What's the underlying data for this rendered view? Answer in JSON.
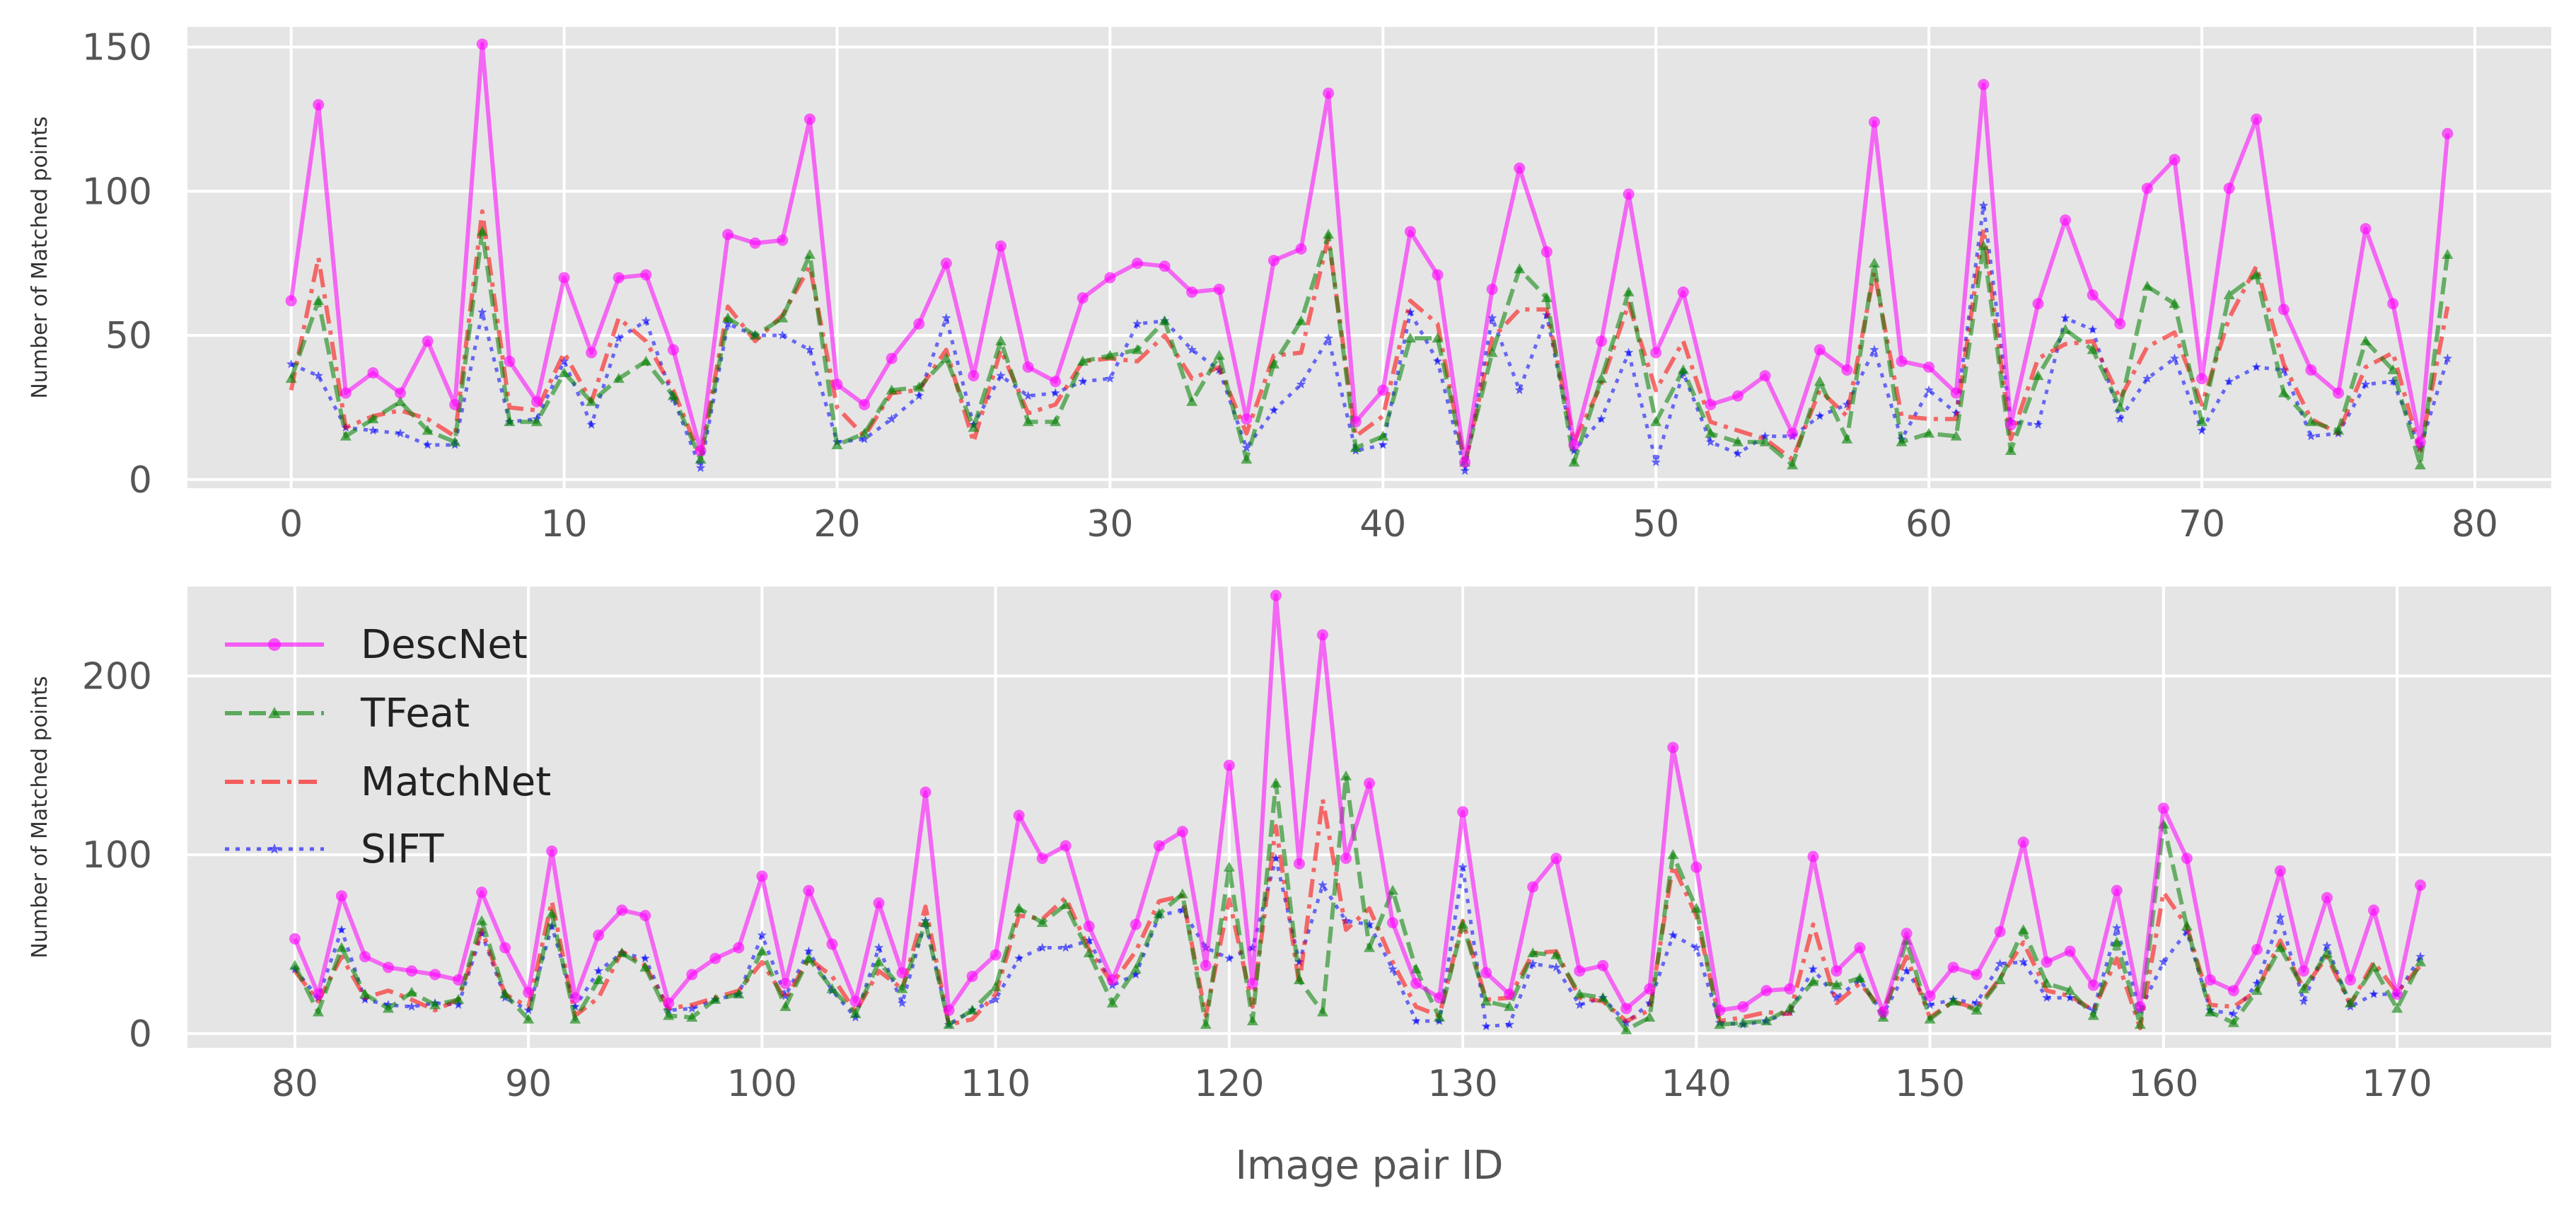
{
  "chart_data": [
    {
      "type": "line",
      "ylabel": "Number of Matched points",
      "xlabel": "",
      "xlim": [
        -3.8,
        82.8
      ],
      "ylim": [
        -3,
        157
      ],
      "xticks": [
        0,
        10,
        20,
        30,
        40,
        50,
        60,
        70,
        80
      ],
      "yticks": [
        0,
        50,
        100,
        150
      ],
      "grid": true,
      "x_start": 0,
      "series": [
        {
          "name": "DescNet",
          "values": [
            62,
            130,
            30,
            37,
            30,
            48,
            26,
            151,
            41,
            27,
            70,
            44,
            70,
            71,
            45,
            10,
            85,
            82,
            83,
            125,
            33,
            26,
            42,
            54,
            75,
            36,
            81,
            39,
            34,
            63,
            70,
            75,
            74,
            65,
            66,
            21,
            76,
            80,
            134,
            20,
            31,
            86,
            71,
            6,
            66,
            108,
            79,
            12,
            48,
            99,
            44,
            65,
            26,
            29,
            36,
            16,
            45,
            38,
            124,
            41,
            39,
            30,
            137,
            19,
            61,
            90,
            64,
            54,
            101,
            111,
            35,
            101,
            125,
            59,
            38,
            30,
            87,
            61,
            13,
            120
          ]
        },
        {
          "name": "TFeat",
          "values": [
            35,
            62,
            15,
            21,
            27,
            17,
            13,
            86,
            20,
            20,
            37,
            27,
            35,
            41,
            29,
            7,
            56,
            50,
            56,
            78,
            12,
            16,
            31,
            32,
            42,
            18,
            48,
            20,
            20,
            41,
            43,
            45,
            55,
            27,
            43,
            7,
            40,
            55,
            85,
            11,
            15,
            49,
            49,
            6,
            44,
            73,
            63,
            6,
            35,
            65,
            20,
            38,
            16,
            13,
            13,
            5,
            34,
            14,
            75,
            13,
            16,
            15,
            81,
            10,
            36,
            52,
            45,
            25,
            67,
            61,
            20,
            64,
            71,
            30,
            20,
            17,
            48,
            38,
            5,
            78
          ]
        },
        {
          "name": "MatchNet",
          "values": [
            31,
            77,
            18,
            22,
            24,
            21,
            15,
            93,
            25,
            24,
            44,
            27,
            56,
            48,
            31,
            8,
            60,
            48,
            57,
            74,
            25,
            15,
            30,
            31,
            45,
            13,
            45,
            23,
            26,
            41,
            42,
            41,
            50,
            35,
            39,
            16,
            43,
            44,
            84,
            15,
            22,
            62,
            54,
            5,
            49,
            59,
            59,
            13,
            33,
            61,
            31,
            48,
            20,
            17,
            14,
            7,
            31,
            22,
            72,
            22,
            21,
            21,
            87,
            14,
            42,
            47,
            48,
            28,
            46,
            51,
            26,
            56,
            74,
            40,
            21,
            16,
            39,
            44,
            10,
            60
          ]
        },
        {
          "name": "SIFT",
          "values": [
            40,
            36,
            18,
            17,
            16,
            12,
            12,
            58,
            20,
            21,
            41,
            19,
            49,
            55,
            28,
            4,
            54,
            50,
            50,
            45,
            13,
            14,
            21,
            29,
            56,
            19,
            36,
            29,
            30,
            34,
            35,
            54,
            55,
            45,
            38,
            11,
            24,
            33,
            49,
            10,
            12,
            58,
            41,
            3,
            56,
            31,
            57,
            10,
            21,
            44,
            6,
            37,
            13,
            9,
            15,
            15,
            22,
            26,
            45,
            14,
            31,
            23,
            95,
            20,
            19,
            56,
            52,
            21,
            35,
            42,
            17,
            34,
            39,
            38,
            15,
            16,
            33,
            34,
            11,
            42
          ]
        }
      ]
    },
    {
      "type": "line",
      "ylabel": "Number of Matched points",
      "xlabel": "Image pair ID",
      "xlim": [
        75.4,
        176.6
      ],
      "ylim": [
        -8,
        250
      ],
      "xticks": [
        80,
        90,
        100,
        110,
        120,
        130,
        140,
        150,
        160,
        170
      ],
      "yticks": [
        0,
        100,
        200
      ],
      "grid": true,
      "x_start": 80,
      "legend": {
        "position": "top-left"
      },
      "series": [
        {
          "name": "DescNet",
          "values": [
            53,
            22,
            77,
            43,
            37,
            35,
            33,
            30,
            79,
            48,
            23,
            102,
            20,
            55,
            69,
            66,
            17,
            33,
            42,
            48,
            88,
            28,
            80,
            50,
            18,
            73,
            34,
            135,
            13,
            32,
            44,
            122,
            98,
            105,
            60,
            30,
            61,
            105,
            113,
            38,
            150,
            28,
            245,
            95,
            223,
            98,
            140,
            62,
            28,
            20,
            124,
            34,
            22,
            82,
            98,
            35,
            38,
            14,
            25,
            160,
            93,
            13,
            15,
            24,
            25,
            99,
            35,
            48,
            12,
            56,
            21,
            37,
            33,
            57,
            107,
            40,
            46,
            27,
            80,
            15,
            126,
            98,
            30,
            24,
            47,
            91,
            35,
            76,
            30,
            69,
            22,
            83
          ]
        },
        {
          "name": "TFeat",
          "values": [
            38,
            12,
            48,
            22,
            14,
            23,
            16,
            19,
            63,
            22,
            8,
            67,
            8,
            30,
            45,
            37,
            10,
            9,
            19,
            22,
            46,
            15,
            42,
            25,
            11,
            40,
            25,
            62,
            5,
            13,
            26,
            70,
            62,
            72,
            45,
            17,
            36,
            67,
            78,
            5,
            93,
            7,
            140,
            30,
            12,
            144,
            48,
            80,
            36,
            9,
            61,
            18,
            15,
            45,
            44,
            22,
            20,
            2,
            9,
            100,
            70,
            5,
            6,
            7,
            14,
            29,
            27,
            31,
            9,
            52,
            8,
            18,
            13,
            30,
            58,
            28,
            24,
            10,
            51,
            5,
            117,
            60,
            12,
            6,
            24,
            48,
            25,
            45,
            17,
            37,
            14,
            40
          ]
        },
        {
          "name": "MatchNet",
          "values": [
            35,
            18,
            43,
            20,
            24,
            19,
            13,
            19,
            58,
            22,
            15,
            74,
            10,
            20,
            46,
            38,
            14,
            16,
            20,
            24,
            40,
            19,
            42,
            32,
            12,
            35,
            25,
            71,
            5,
            8,
            22,
            66,
            64,
            76,
            47,
            28,
            46,
            74,
            77,
            10,
            75,
            15,
            116,
            27,
            131,
            58,
            70,
            40,
            15,
            10,
            63,
            19,
            20,
            45,
            46,
            20,
            18,
            7,
            13,
            94,
            66,
            7,
            9,
            12,
            11,
            61,
            17,
            28,
            13,
            43,
            9,
            18,
            14,
            31,
            51,
            24,
            21,
            13,
            42,
            3,
            79,
            60,
            16,
            15,
            24,
            52,
            25,
            43,
            16,
            40,
            23,
            38
          ]
        },
        {
          "name": "SIFT",
          "values": [
            36,
            20,
            58,
            19,
            16,
            15,
            17,
            16,
            56,
            20,
            13,
            60,
            15,
            35,
            45,
            42,
            13,
            14,
            19,
            22,
            55,
            21,
            46,
            24,
            9,
            48,
            17,
            63,
            5,
            13,
            19,
            42,
            48,
            48,
            52,
            27,
            33,
            66,
            69,
            48,
            42,
            48,
            98,
            40,
            83,
            63,
            61,
            36,
            7,
            7,
            93,
            4,
            5,
            39,
            37,
            16,
            20,
            6,
            17,
            55,
            48,
            6,
            5,
            7,
            12,
            36,
            20,
            30,
            11,
            35,
            16,
            19,
            17,
            39,
            40,
            20,
            20,
            13,
            59,
            13,
            40,
            57,
            13,
            11,
            28,
            65,
            18,
            49,
            15,
            22,
            22,
            43
          ]
        }
      ]
    }
  ],
  "colors": {
    "DescNet": "#ff00ff",
    "TFeat": "#008000",
    "MatchNet": "#ff0000",
    "SIFT": "#0000ff",
    "background": "#e5e5e5",
    "grid": "#ffffff"
  }
}
